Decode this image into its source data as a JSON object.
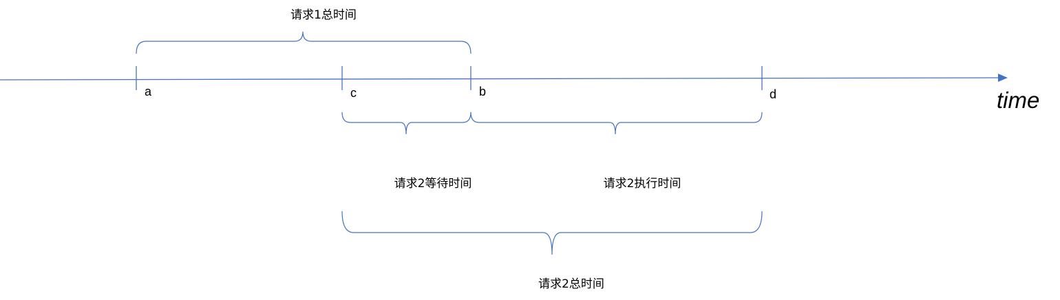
{
  "colors": {
    "line": "#4472C4",
    "text": "#000000",
    "background": "#FFFFFF"
  },
  "axis": {
    "title": "time",
    "arrowhead_icon": "arrow-right"
  },
  "points": {
    "a": "a",
    "c": "c",
    "b": "b",
    "d": "d"
  },
  "braces": {
    "request1_total": "请求1总时间",
    "request2_wait": "请求2等待时间",
    "request2_exec": "请求2执行时间",
    "request2_total": "请求2总时间"
  }
}
